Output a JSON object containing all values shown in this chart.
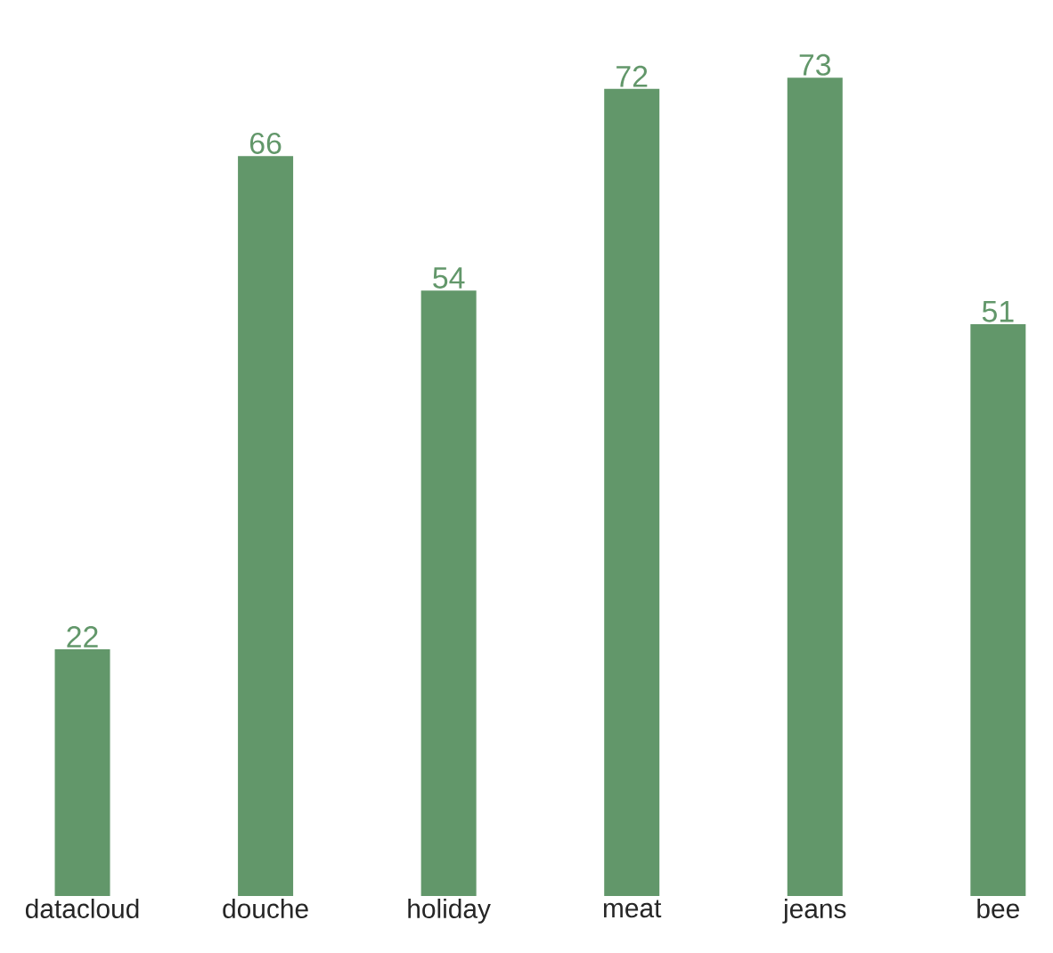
{
  "chart_data": {
    "type": "bar",
    "categories": [
      "datacloud",
      "douche",
      "holiday",
      "meat",
      "jeans",
      "bee"
    ],
    "values": [
      22,
      66,
      54,
      72,
      73,
      51
    ],
    "color": "#62976a",
    "data_labels": true
  }
}
